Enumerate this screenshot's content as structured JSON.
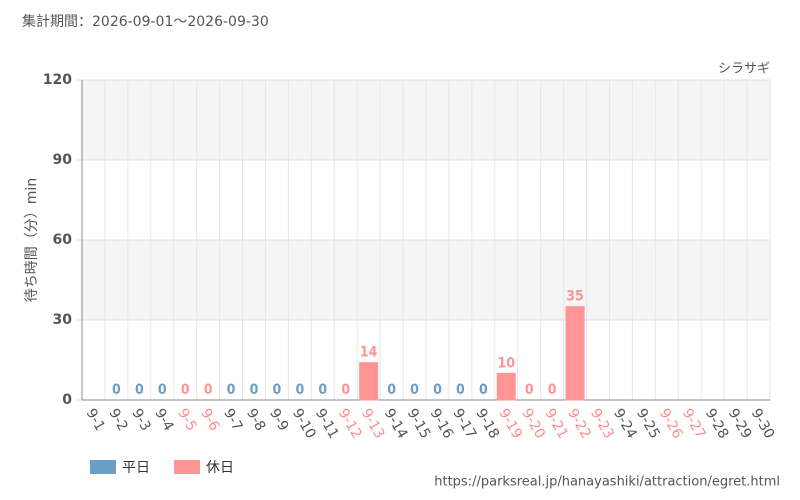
{
  "chart_data": {
    "type": "bar",
    "title": "集計期間：2026-09-01～2026-09-30",
    "subtitle": "シラサギ",
    "y_label": "待ち時間（分）min",
    "source": "https://parksreal.jp/hanayashiki/attraction/egret.html",
    "categories": [
      "9-1",
      "9-2",
      "9-3",
      "9-4",
      "9-5",
      "9-6",
      "9-7",
      "9-8",
      "9-9",
      "9-10",
      "9-11",
      "9-12",
      "9-13",
      "9-14",
      "9-15",
      "9-16",
      "9-17",
      "9-18",
      "9-19",
      "9-20",
      "9-21",
      "9-22",
      "9-23",
      "9-24",
      "9-25",
      "9-26",
      "9-27",
      "9-28",
      "9-29",
      "9-30"
    ],
    "category_label_colors": [
      "#555",
      "#555",
      "#555",
      "#555",
      "#ff8c8c",
      "#ff8c8c",
      "#555",
      "#555",
      "#555",
      "#555",
      "#555",
      "#ff8c8c",
      "#ff8c8c",
      "#555",
      "#555",
      "#555",
      "#555",
      "#555",
      "#ff8c8c",
      "#ff8c8c",
      "#ff8c8c",
      "#ff8c8c",
      "#ff8c8c",
      "#555",
      "#555",
      "#ff8c8c",
      "#ff8c8c",
      "#555",
      "#555",
      "#555"
    ],
    "series": [
      {
        "name": "平日",
        "color": "#6a9ec5",
        "values": [
          null,
          0,
          0,
          0,
          null,
          null,
          0,
          0,
          0,
          0,
          0,
          null,
          null,
          0,
          0,
          0,
          0,
          0,
          null,
          null,
          null,
          null,
          null,
          null,
          null,
          null,
          null,
          null,
          null,
          null
        ]
      },
      {
        "name": "休日",
        "color": "#ff9494",
        "values": [
          null,
          null,
          null,
          null,
          0,
          0,
          null,
          null,
          null,
          null,
          null,
          0,
          14,
          null,
          null,
          null,
          null,
          null,
          10,
          0,
          0,
          35,
          null,
          null,
          null,
          null,
          null,
          null,
          null,
          null
        ]
      }
    ],
    "ylim": [
      0,
      120
    ],
    "yticks": [
      0,
      30,
      60,
      90,
      120
    ],
    "grid": true
  }
}
